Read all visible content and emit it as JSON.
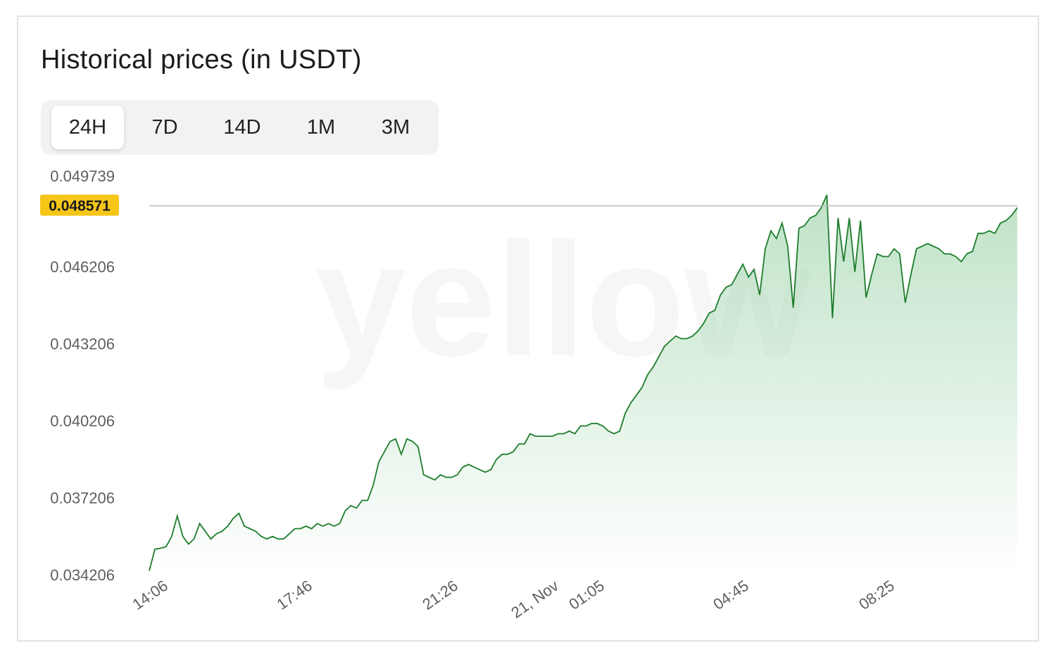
{
  "title": "Historical prices (in USDT)",
  "tabs": [
    {
      "label": "24H",
      "active": true
    },
    {
      "label": "7D",
      "active": false
    },
    {
      "label": "14D",
      "active": false
    },
    {
      "label": "1M",
      "active": false
    },
    {
      "label": "3M",
      "active": false
    }
  ],
  "watermark": "yellow",
  "colors": {
    "line": "#1e7d2c",
    "fill": "#a9d9b5",
    "current_badge": "#f5c518",
    "reference_line": "#bdbdbd"
  },
  "chart_data": {
    "type": "area",
    "title": "Historical prices (in USDT)",
    "xlabel": "",
    "ylabel": "",
    "ylim": [
      0.034206,
      0.049739
    ],
    "y_ticks": [
      "0.049739",
      "0.046206",
      "0.043206",
      "0.040206",
      "0.037206",
      "0.034206"
    ],
    "x_ticks": [
      "14:06",
      "17:46",
      "21:26",
      "21, Nov",
      "01:05",
      "04:45",
      "08:25"
    ],
    "current_value": "0.048571",
    "grid": false,
    "series": [
      {
        "values": [
          0.03436,
          0.0352,
          0.03524,
          0.0353,
          0.0357,
          0.0365,
          0.0357,
          0.0354,
          0.0356,
          0.0362,
          0.0359,
          0.0356,
          0.0358,
          0.0359,
          0.0361,
          0.0364,
          0.0366,
          0.0361,
          0.036,
          0.0359,
          0.0357,
          0.0356,
          0.0357,
          0.0356,
          0.0356,
          0.0358,
          0.036,
          0.036,
          0.0361,
          0.036,
          0.0362,
          0.0361,
          0.0362,
          0.0361,
          0.0362,
          0.0367,
          0.0369,
          0.0368,
          0.0371,
          0.0371,
          0.0377,
          0.0386,
          0.039,
          0.0394,
          0.0395,
          0.0389,
          0.0395,
          0.0394,
          0.0392,
          0.0381,
          0.038,
          0.0379,
          0.0381,
          0.038,
          0.038,
          0.0381,
          0.0384,
          0.0385,
          0.0384,
          0.0383,
          0.0382,
          0.0383,
          0.0387,
          0.0389,
          0.0389,
          0.039,
          0.0393,
          0.0393,
          0.0397,
          0.0396,
          0.0396,
          0.0396,
          0.0396,
          0.0397,
          0.0397,
          0.0398,
          0.0397,
          0.04,
          0.04,
          0.0401,
          0.0401,
          0.04,
          0.0398,
          0.0397,
          0.0398,
          0.0405,
          0.0409,
          0.0412,
          0.0415,
          0.042,
          0.0423,
          0.0427,
          0.0431,
          0.0433,
          0.0435,
          0.0434,
          0.0434,
          0.0435,
          0.0437,
          0.044,
          0.0444,
          0.0445,
          0.0451,
          0.0454,
          0.0455,
          0.0459,
          0.0463,
          0.0458,
          0.0461,
          0.0451,
          0.0469,
          0.0476,
          0.0473,
          0.0479,
          0.047,
          0.0446,
          0.0477,
          0.0478,
          0.0481,
          0.0482,
          0.0485,
          0.049,
          0.0442,
          0.0481,
          0.0464,
          0.0481,
          0.046,
          0.048,
          0.045,
          0.0459,
          0.0467,
          0.0466,
          0.0466,
          0.0469,
          0.0467,
          0.0448,
          0.0459,
          0.0469,
          0.047,
          0.0471,
          0.047,
          0.0469,
          0.0467,
          0.0467,
          0.0466,
          0.0464,
          0.0467,
          0.0468,
          0.0475,
          0.0475,
          0.0476,
          0.0475,
          0.0479,
          0.048,
          0.0482,
          0.0485
        ]
      }
    ]
  }
}
